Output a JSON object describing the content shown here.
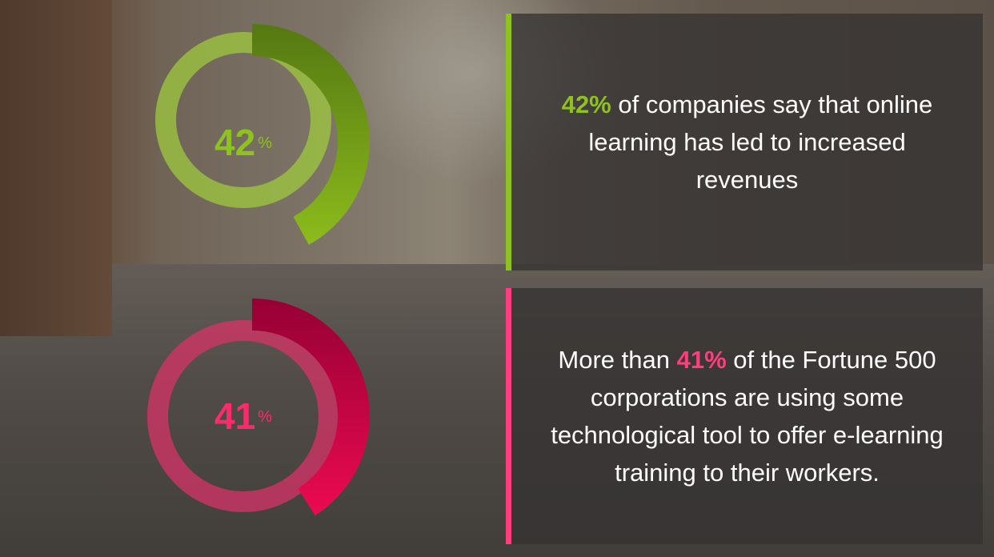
{
  "colors": {
    "green": "#8dc21f",
    "pink": "#ff3d7f"
  },
  "stats": [
    {
      "value": 42,
      "unit": "%",
      "highlight": "42%",
      "text_before": "",
      "text_after": " of companies say that online learning has led to increased revenues"
    },
    {
      "value": 41,
      "unit": "%",
      "highlight": "41%",
      "text_before": "More than ",
      "text_after": " of the Fortune 500 corporations are using some technological tool to offer e-learning training to their workers."
    }
  ]
}
